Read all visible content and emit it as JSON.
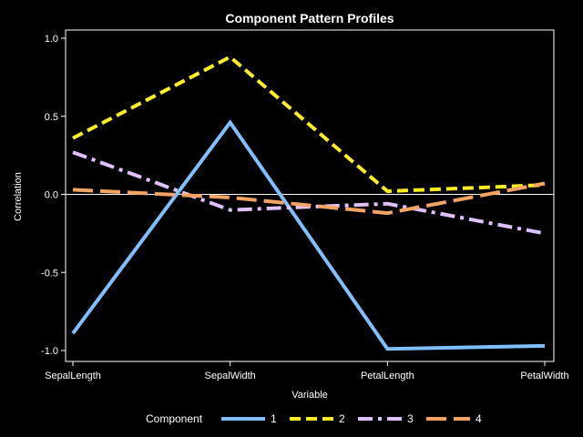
{
  "chart_data": {
    "type": "line",
    "title": "Component Pattern Profiles",
    "xlabel": "Variable",
    "ylabel": "Correlation",
    "categories": [
      "SepalLength",
      "SepalWidth",
      "PetalLength",
      "PetalWidth"
    ],
    "ylim": [
      -1.0,
      1.0
    ],
    "yticks": [
      "1.0",
      "0.5",
      "0.0",
      "-0.5",
      "-1.0"
    ],
    "ytick_values": [
      1.0,
      0.5,
      0.0,
      -0.5,
      -1.0
    ],
    "reference_line": 0.0,
    "legend_title": "Component",
    "legend_position": "bottom",
    "series": [
      {
        "name": "1",
        "color": "#7fbfff",
        "dash": "solid",
        "values": [
          -0.89,
          0.46,
          -0.99,
          -0.97
        ]
      },
      {
        "name": "2",
        "color": "#ffee22",
        "dash": "dash",
        "values": [
          0.36,
          0.88,
          0.02,
          0.06
        ]
      },
      {
        "name": "3",
        "color": "#e0c0ff",
        "dash": "dashdot",
        "values": [
          0.27,
          -0.1,
          -0.06,
          -0.25
        ]
      },
      {
        "name": "4",
        "color": "#f4a460",
        "dash": "longdash",
        "values": [
          0.03,
          -0.02,
          -0.12,
          0.07
        ]
      }
    ]
  }
}
